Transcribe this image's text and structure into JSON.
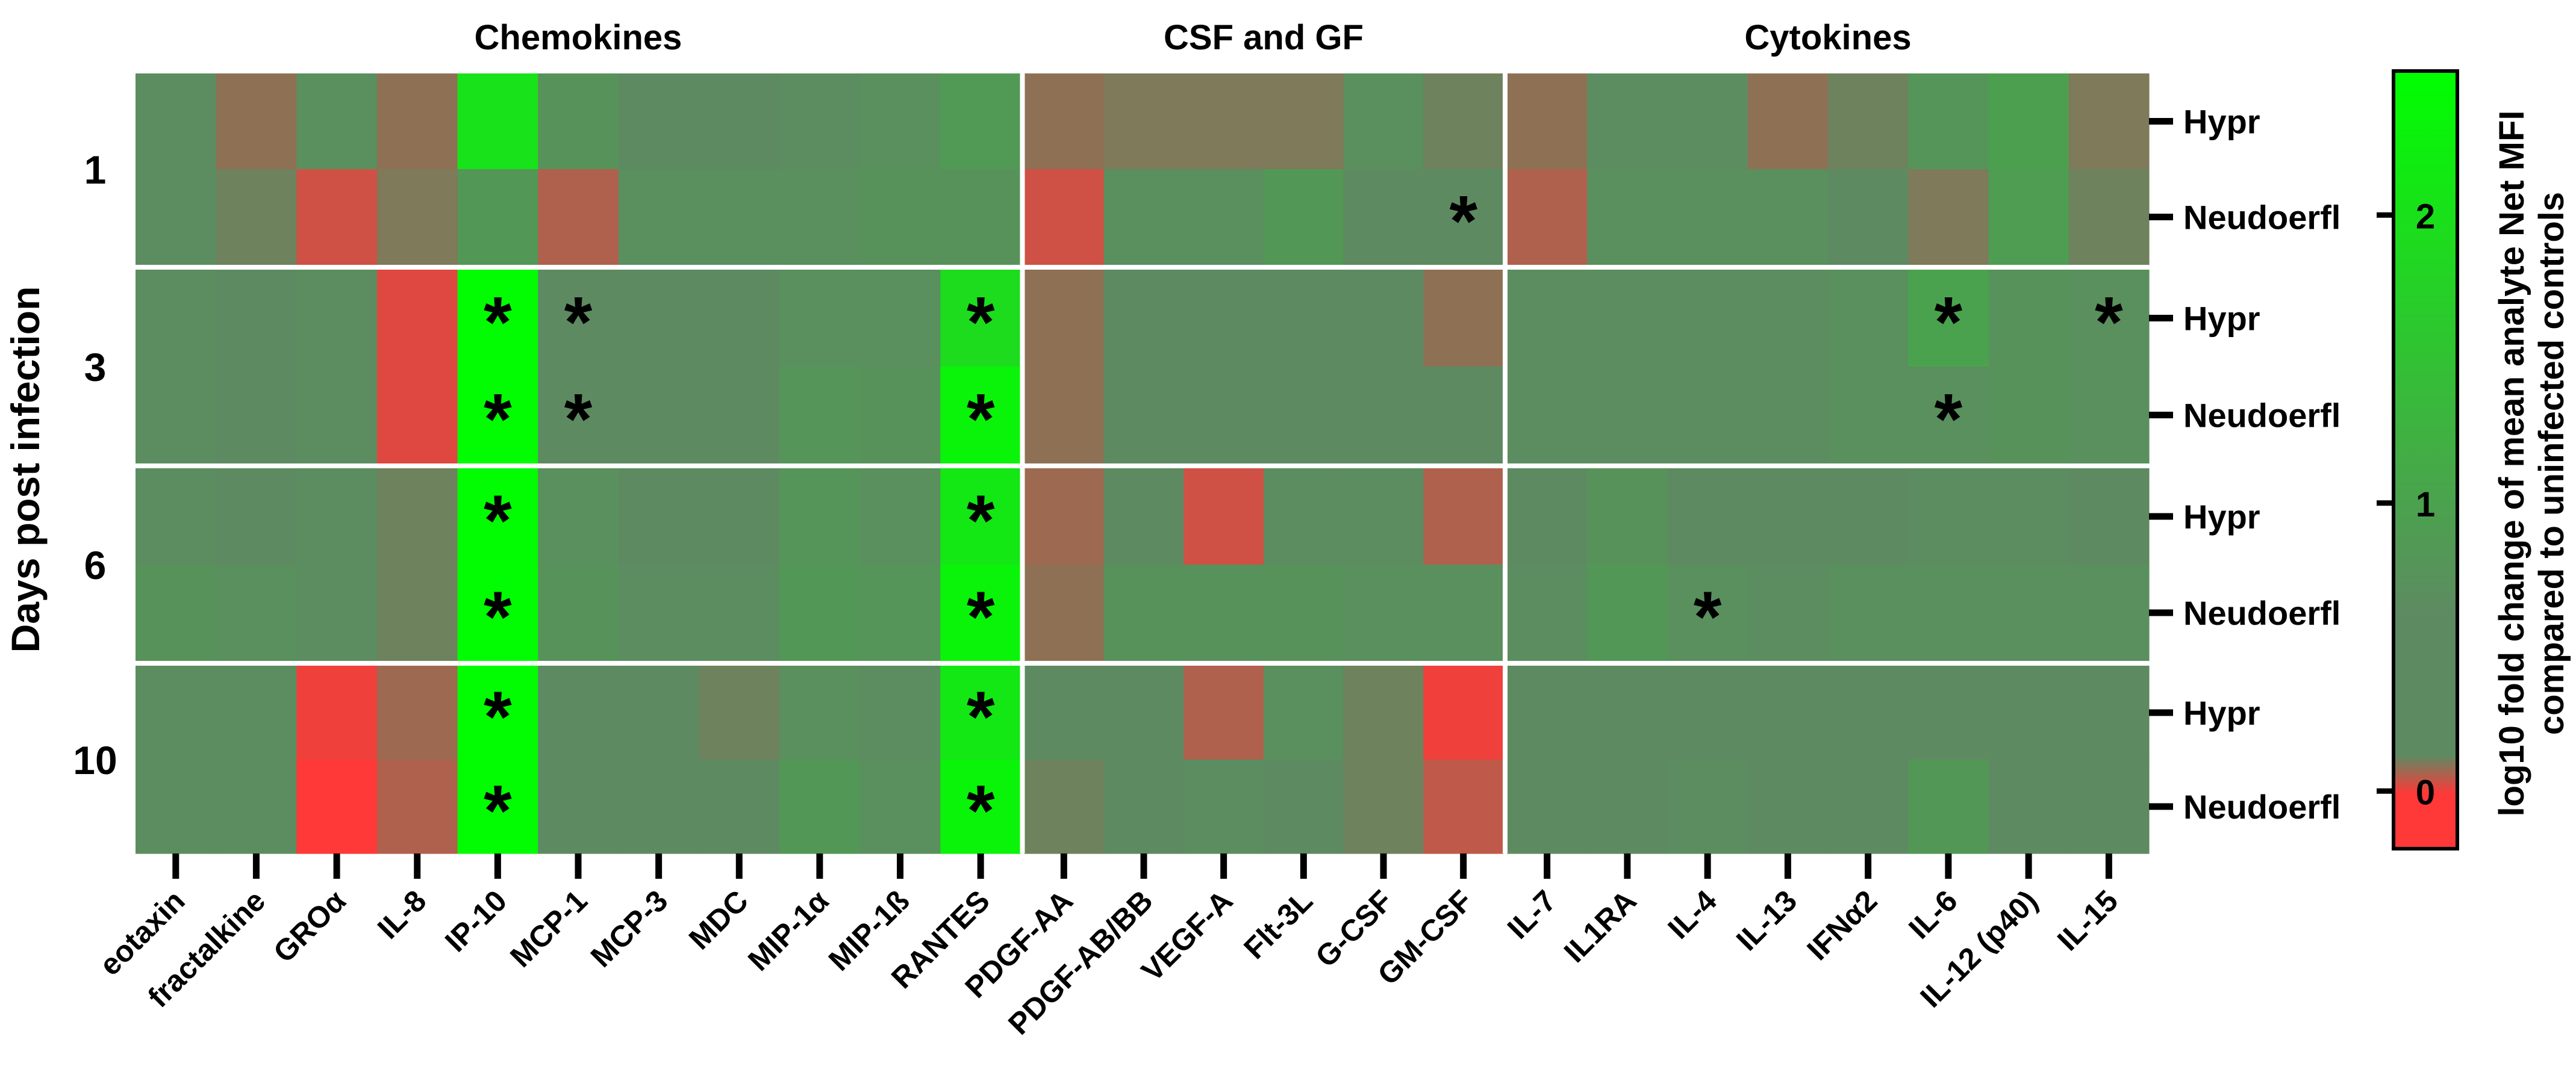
{
  "chart_data": {
    "type": "heatmap",
    "group_titles": [
      "Chemokines",
      "CSF and GF",
      "Cytokines"
    ],
    "groups": [
      {
        "title": "Chemokines",
        "analytes": [
          "eotaxin",
          "fractalkine",
          "GROα",
          "IL-8",
          "IP-10",
          "MCP-1",
          "MCP-3",
          "MDC",
          "MIP-1α",
          "MIP-1ß",
          "RANTES"
        ]
      },
      {
        "title": "CSF and GF",
        "analytes": [
          "PDGF-AA",
          "PDGF-AB/BB",
          "VEGF-A",
          "Flt-3L",
          "G-CSF",
          "GM-CSF"
        ]
      },
      {
        "title": "Cytokines",
        "analytes": [
          "IL-7",
          "IL1RA",
          "IL-4",
          "IL-13",
          "IFNα2",
          "IL-6",
          "IL-12 (p40)",
          "IL-15"
        ]
      }
    ],
    "days": [
      "1",
      "3",
      "6",
      "10"
    ],
    "strains": [
      "Hypr",
      "Neudoerfl"
    ],
    "ylabel": "Days post infection",
    "colorbar": {
      "label_line1": "log10 fold change of mean analyte Net MFI",
      "label_line2": "compared to uninfected controls",
      "ticks": [
        "0",
        "1",
        "2"
      ],
      "range": [
        -0.2,
        2.5
      ],
      "colors": {
        "low": "#ff3838",
        "mid": "#5e8a62",
        "high": "#00ff00"
      }
    },
    "values": {
      "1": {
        "Hypr": [
          0.35,
          0.15,
          0.4,
          0.15,
          1.95,
          0.45,
          0.3,
          0.3,
          0.35,
          0.4,
          0.6,
          0.15,
          0.2,
          0.2,
          0.2,
          0.4,
          0.25,
          0.15,
          0.35,
          0.35,
          0.15,
          0.25,
          0.5,
          0.7,
          0.2
        ],
        "Neudoerfl": [
          0.35,
          0.25,
          -0.05,
          0.2,
          0.55,
          0.05,
          0.4,
          0.4,
          0.4,
          0.45,
          0.45,
          -0.05,
          0.4,
          0.4,
          0.55,
          0.3,
          0.3,
          0.05,
          0.4,
          0.4,
          0.4,
          0.3,
          0.2,
          0.65,
          0.25
        ]
      },
      "3": {
        "Hypr": [
          0.35,
          0.3,
          0.35,
          -0.1,
          2.45,
          0.3,
          0.3,
          0.3,
          0.4,
          0.4,
          1.85,
          0.15,
          0.3,
          0.3,
          0.3,
          0.3,
          0.15,
          0.35,
          0.35,
          0.35,
          0.35,
          0.4,
          0.75,
          0.45,
          0.4
        ],
        "Neudoerfl": [
          0.35,
          0.3,
          0.35,
          -0.1,
          2.45,
          0.3,
          0.3,
          0.3,
          0.5,
          0.45,
          2.3,
          0.15,
          0.3,
          0.3,
          0.3,
          0.3,
          0.3,
          0.35,
          0.35,
          0.35,
          0.35,
          0.4,
          0.4,
          0.45,
          0.4
        ]
      },
      "6": {
        "Hypr": [
          0.35,
          0.3,
          0.35,
          0.25,
          2.45,
          0.4,
          0.3,
          0.3,
          0.5,
          0.4,
          2.05,
          0.1,
          0.3,
          -0.05,
          0.35,
          0.35,
          0.05,
          0.3,
          0.45,
          0.3,
          0.3,
          0.3,
          0.35,
          0.35,
          0.3
        ],
        "Neudoerfl": [
          0.45,
          0.4,
          0.35,
          0.25,
          2.45,
          0.45,
          0.35,
          0.35,
          0.55,
          0.5,
          2.3,
          0.15,
          0.45,
          0.45,
          0.45,
          0.4,
          0.4,
          0.35,
          0.55,
          0.4,
          0.35,
          0.4,
          0.4,
          0.4,
          0.4
        ]
      },
      "10": {
        "Hypr": [
          0.35,
          0.35,
          -0.15,
          0.1,
          2.45,
          0.3,
          0.3,
          0.25,
          0.4,
          0.35,
          2.05,
          0.3,
          0.3,
          0.05,
          0.4,
          0.25,
          -0.15,
          0.3,
          0.3,
          0.3,
          0.3,
          0.3,
          0.3,
          0.3,
          0.3
        ],
        "Neudoerfl": [
          0.35,
          0.35,
          -0.2,
          0.05,
          2.45,
          0.3,
          0.3,
          0.3,
          0.55,
          0.4,
          2.3,
          0.25,
          0.3,
          0.35,
          0.3,
          0.25,
          0.0,
          0.3,
          0.3,
          0.35,
          0.3,
          0.3,
          0.55,
          0.3,
          0.3
        ]
      }
    },
    "significant": [
      {
        "day": "1",
        "strain": "Neudoerfl",
        "analyte": "GM-CSF"
      },
      {
        "day": "3",
        "strain": "Hypr",
        "analyte": "IP-10"
      },
      {
        "day": "3",
        "strain": "Hypr",
        "analyte": "MCP-1"
      },
      {
        "day": "3",
        "strain": "Hypr",
        "analyte": "RANTES"
      },
      {
        "day": "3",
        "strain": "Hypr",
        "analyte": "IL-6"
      },
      {
        "day": "3",
        "strain": "Hypr",
        "analyte": "IL-15"
      },
      {
        "day": "3",
        "strain": "Neudoerfl",
        "analyte": "IP-10"
      },
      {
        "day": "3",
        "strain": "Neudoerfl",
        "analyte": "MCP-1"
      },
      {
        "day": "3",
        "strain": "Neudoerfl",
        "analyte": "RANTES"
      },
      {
        "day": "3",
        "strain": "Neudoerfl",
        "analyte": "IL-6"
      },
      {
        "day": "6",
        "strain": "Hypr",
        "analyte": "IP-10"
      },
      {
        "day": "6",
        "strain": "Hypr",
        "analyte": "RANTES"
      },
      {
        "day": "6",
        "strain": "Neudoerfl",
        "analyte": "IP-10"
      },
      {
        "day": "6",
        "strain": "Neudoerfl",
        "analyte": "RANTES"
      },
      {
        "day": "6",
        "strain": "Neudoerfl",
        "analyte": "IL-4"
      },
      {
        "day": "10",
        "strain": "Hypr",
        "analyte": "IP-10"
      },
      {
        "day": "10",
        "strain": "Hypr",
        "analyte": "RANTES"
      },
      {
        "day": "10",
        "strain": "Neudoerfl",
        "analyte": "IP-10"
      },
      {
        "day": "10",
        "strain": "Neudoerfl",
        "analyte": "RANTES"
      }
    ],
    "significance_marker": "*"
  }
}
